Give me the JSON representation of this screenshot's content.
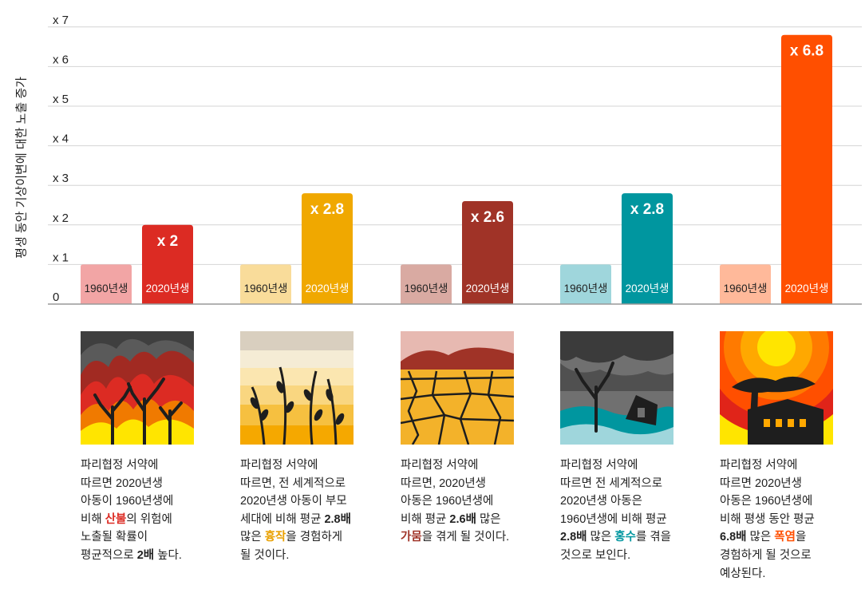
{
  "chart_data": {
    "type": "bar",
    "ylabel": "평생 동안 기상이변에 대한 노출 증가",
    "ylim": [
      0,
      7
    ],
    "yticks": [
      "0",
      "x 1",
      "x 2",
      "x 3",
      "x 4",
      "x 5",
      "x 6",
      "x 7"
    ],
    "grid": true,
    "groups": [
      {
        "key": "wildfire",
        "bars": [
          {
            "label": "1960년생",
            "value": 1,
            "color": "#f2a5a5"
          },
          {
            "label": "2020년생",
            "value": 2,
            "value_label": "x 2",
            "color": "#dc2b23"
          }
        ]
      },
      {
        "key": "crop",
        "bars": [
          {
            "label": "1960년생",
            "value": 1,
            "color": "#f9dc9a"
          },
          {
            "label": "2020년생",
            "value": 2.8,
            "value_label": "x 2.8",
            "color": "#f0a800"
          }
        ]
      },
      {
        "key": "drought",
        "bars": [
          {
            "label": "1960년생",
            "value": 1,
            "color": "#d9aaa2"
          },
          {
            "label": "2020년생",
            "value": 2.6,
            "value_label": "x 2.6",
            "color": "#a03327"
          }
        ]
      },
      {
        "key": "flood",
        "bars": [
          {
            "label": "1960년생",
            "value": 1,
            "color": "#9fd6dc"
          },
          {
            "label": "2020년생",
            "value": 2.8,
            "value_label": "x 2.8",
            "color": "#00969f"
          }
        ]
      },
      {
        "key": "heatwave",
        "bars": [
          {
            "label": "1960년생",
            "value": 1,
            "color": "#ffb99a"
          },
          {
            "label": "2020년생",
            "value": 6.8,
            "value_label": "x 6.8",
            "color": "#ff4f00"
          }
        ]
      }
    ]
  },
  "panels": [
    {
      "lines": [
        [
          {
            "t": "파리협정 서약에"
          }
        ],
        [
          {
            "t": "따르면 2020년생"
          }
        ],
        [
          {
            "t": "아동이 1960년생에"
          }
        ],
        [
          {
            "t": "비해 "
          },
          {
            "t": "산불",
            "b": true,
            "c": "#dc2b23"
          },
          {
            "t": "의 위험에"
          }
        ],
        [
          {
            "t": "노출될 확률이"
          }
        ],
        [
          {
            "t": "평균적으로 "
          },
          {
            "t": "2배",
            "b": true
          },
          {
            "t": " 높다."
          }
        ]
      ]
    },
    {
      "lines": [
        [
          {
            "t": "파리협정 서약에"
          }
        ],
        [
          {
            "t": "따르면, 전 세계적으로"
          }
        ],
        [
          {
            "t": "2020년생 아동이 부모"
          }
        ],
        [
          {
            "t": "세대에 비해 평균 "
          },
          {
            "t": "2.8배",
            "b": true
          }
        ],
        [
          {
            "t": "많은 "
          },
          {
            "t": "흉작",
            "b": true,
            "c": "#e9a000"
          },
          {
            "t": "을 경험하게"
          }
        ],
        [
          {
            "t": "될 것이다."
          }
        ]
      ]
    },
    {
      "lines": [
        [
          {
            "t": "파리협정 서약에"
          }
        ],
        [
          {
            "t": "따르면, 2020년생"
          }
        ],
        [
          {
            "t": "아동은 1960년생에"
          }
        ],
        [
          {
            "t": "비해 평균 "
          },
          {
            "t": "2.6배",
            "b": true
          },
          {
            "t": " 많은"
          }
        ],
        [
          {
            "t": "가뭄",
            "b": true,
            "c": "#a03327"
          },
          {
            "t": "을 겪게 될 것이다."
          }
        ]
      ]
    },
    {
      "lines": [
        [
          {
            "t": "파리협정 서약에"
          }
        ],
        [
          {
            "t": "따르면 전 세계적으로"
          }
        ],
        [
          {
            "t": "2020년생 아동은"
          }
        ],
        [
          {
            "t": "1960년생에 비해 평균"
          }
        ],
        [
          {
            "t": "2.8배",
            "b": true
          },
          {
            "t": " 많은 "
          },
          {
            "t": "홍수",
            "b": true,
            "c": "#00969f"
          },
          {
            "t": "를 겪을"
          }
        ],
        [
          {
            "t": "것으로 보인다."
          }
        ]
      ]
    },
    {
      "lines": [
        [
          {
            "t": "파리협정 서약에"
          }
        ],
        [
          {
            "t": "따르면 2020년생"
          }
        ],
        [
          {
            "t": "아동은 1960년생에"
          }
        ],
        [
          {
            "t": "비해 평생 동안 평균"
          }
        ],
        [
          {
            "t": "6.8배",
            "b": true
          },
          {
            "t": " 많은 "
          },
          {
            "t": "폭염",
            "b": true,
            "c": "#ff4f00"
          },
          {
            "t": "을"
          }
        ],
        [
          {
            "t": "경험하게 될 것으로"
          }
        ],
        [
          {
            "t": "예상된다."
          }
        ]
      ]
    }
  ],
  "icons": [
    "wildfire-icon",
    "crop-failure-icon",
    "drought-icon",
    "flood-icon",
    "heatwave-icon"
  ]
}
